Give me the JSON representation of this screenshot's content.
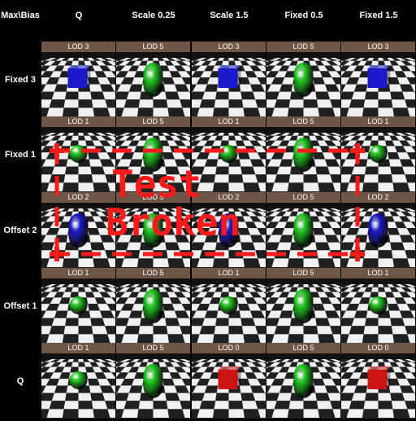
{
  "corner_label": "Max\\Bias",
  "columns": [
    "Q",
    "Scale 0.25",
    "Scale 1.5",
    "Fixed 0.5",
    "Fixed 1.5"
  ],
  "rows": [
    {
      "label": "Fixed 3",
      "cells": [
        {
          "lod": "LOD 3",
          "shape": "cube",
          "color": "blue"
        },
        {
          "lod": "LOD 5",
          "shape": "capsule",
          "color": "green"
        },
        {
          "lod": "LOD 3",
          "shape": "cube",
          "color": "blue"
        },
        {
          "lod": "LOD 5",
          "shape": "capsule",
          "color": "green"
        },
        {
          "lod": "LOD 3",
          "shape": "cube",
          "color": "blue"
        }
      ]
    },
    {
      "label": "Fixed 1",
      "cells": [
        {
          "lod": "LOD 1",
          "shape": "sphere",
          "color": "green"
        },
        {
          "lod": "LOD 5",
          "shape": "capsule",
          "color": "green"
        },
        {
          "lod": "LOD 1",
          "shape": "sphere",
          "color": "green"
        },
        {
          "lod": "LOD 5",
          "shape": "capsule",
          "color": "green"
        },
        {
          "lod": "LOD 1",
          "shape": "sphere",
          "color": "green"
        }
      ]
    },
    {
      "label": "Offset 2",
      "cells": [
        {
          "lod": "LOD 2",
          "shape": "capsule",
          "color": "blue"
        },
        {
          "lod": "LOD 5",
          "shape": "capsule",
          "color": "green"
        },
        {
          "lod": "LOD 2",
          "shape": "capsule",
          "color": "blue"
        },
        {
          "lod": "LOD 5",
          "shape": "capsule",
          "color": "green"
        },
        {
          "lod": "LOD 2",
          "shape": "capsule",
          "color": "blue"
        }
      ]
    },
    {
      "label": "Offset 1",
      "cells": [
        {
          "lod": "LOD 1",
          "shape": "sphere",
          "color": "green"
        },
        {
          "lod": "LOD 5",
          "shape": "capsule",
          "color": "green"
        },
        {
          "lod": "LOD 1",
          "shape": "sphere",
          "color": "green"
        },
        {
          "lod": "LOD 5",
          "shape": "capsule",
          "color": "green"
        },
        {
          "lod": "LOD 1",
          "shape": "sphere",
          "color": "green"
        }
      ]
    },
    {
      "label": "Q",
      "cells": [
        {
          "lod": "LOD 1",
          "shape": "sphere",
          "color": "green"
        },
        {
          "lod": "LOD 5",
          "shape": "capsule",
          "color": "green"
        },
        {
          "lod": "LOD 0",
          "shape": "cube",
          "color": "red"
        },
        {
          "lod": "LOD 5",
          "shape": "capsule",
          "color": "green"
        },
        {
          "lod": "LOD 0",
          "shape": "cube",
          "color": "red"
        }
      ]
    }
  ],
  "overlay": {
    "line1": "Test",
    "line2": "Broken",
    "color": "#ff1a1a"
  },
  "colors": {
    "green": "#1ec81e",
    "blue": "#1a1acc",
    "red": "#cc1414",
    "lod_bar": "#6f5646",
    "checker_light": "#f0f0f0",
    "checker_dark": "#202020"
  }
}
